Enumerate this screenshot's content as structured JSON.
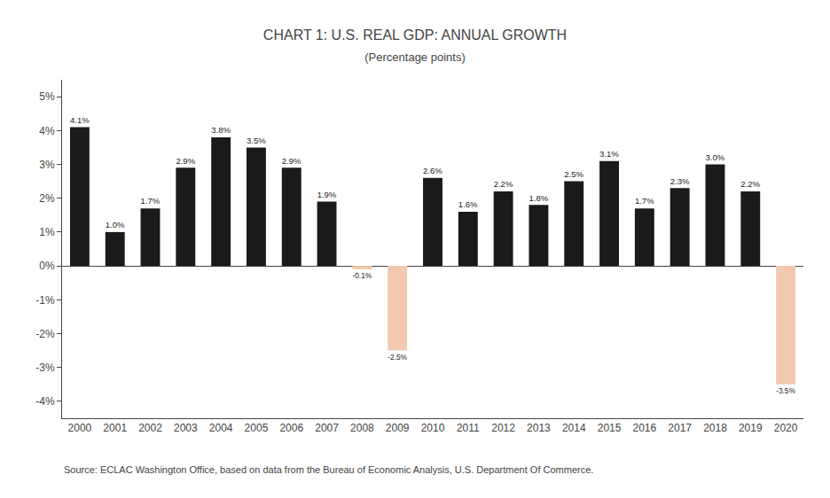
{
  "chart_data": {
    "type": "bar",
    "title": "CHART 1: U.S. REAL GDP: ANNUAL GROWTH",
    "subtitle": "(Percentage points)",
    "annotations": [
      "Source: ECLAC Washington Office, based on data from the Bureau of Economic Analysis, U.S. Department Of Commerce."
    ],
    "categories": [
      "2000",
      "2001",
      "2002",
      "2003",
      "2004",
      "2005",
      "2006",
      "2007",
      "2008",
      "2009",
      "2010",
      "2011",
      "2012",
      "2013",
      "2014",
      "2015",
      "2016",
      "2017",
      "2018",
      "2019",
      "2020"
    ],
    "values": [
      4.1,
      1.0,
      1.7,
      2.9,
      3.8,
      3.5,
      2.9,
      1.9,
      -0.1,
      -2.5,
      2.6,
      1.6,
      2.2,
      1.8,
      2.5,
      3.1,
      1.7,
      2.3,
      3.0,
      2.2,
      -3.5
    ],
    "value_labels": [
      "4.1%",
      "1.0%",
      "1.7%",
      "2.9%",
      "3.8%",
      "3.5%",
      "2.9%",
      "1.9%",
      "-0.1%",
      "-2.5%",
      "2.6%",
      "1.6%",
      "2.2%",
      "1.8%",
      "2.5%",
      "3.1%",
      "1.7%",
      "2.3%",
      "3.0%",
      "2.2%",
      "-3.5%"
    ],
    "data_labels": true,
    "colors": [
      "#1a1a1a",
      "#1a1a1a",
      "#1a1a1a",
      "#1a1a1a",
      "#1a1a1a",
      "#1a1a1a",
      "#1a1a1a",
      "#1a1a1a",
      "#f2c9b0",
      "#f2c9b0",
      "#1a1a1a",
      "#1a1a1a",
      "#1a1a1a",
      "#1a1a1a",
      "#1a1a1a",
      "#1a1a1a",
      "#1a1a1a",
      "#1a1a1a",
      "#1a1a1a",
      "#1a1a1a",
      "#f2c9b0"
    ],
    "ylim": [
      -4.5,
      5.5
    ],
    "yticks": [
      {
        "value": -4,
        "label": "-4%"
      },
      {
        "value": -3,
        "label": "-3%"
      },
      {
        "value": -2,
        "label": "-2%"
      },
      {
        "value": -1,
        "label": "-1%"
      },
      {
        "value": 0,
        "label": "0%"
      },
      {
        "value": 1,
        "label": "1%"
      },
      {
        "value": 2,
        "label": "2%"
      },
      {
        "value": 3,
        "label": "3%"
      },
      {
        "value": 4,
        "label": "4%"
      },
      {
        "value": 5,
        "label": "5%"
      }
    ],
    "grid": false
  }
}
